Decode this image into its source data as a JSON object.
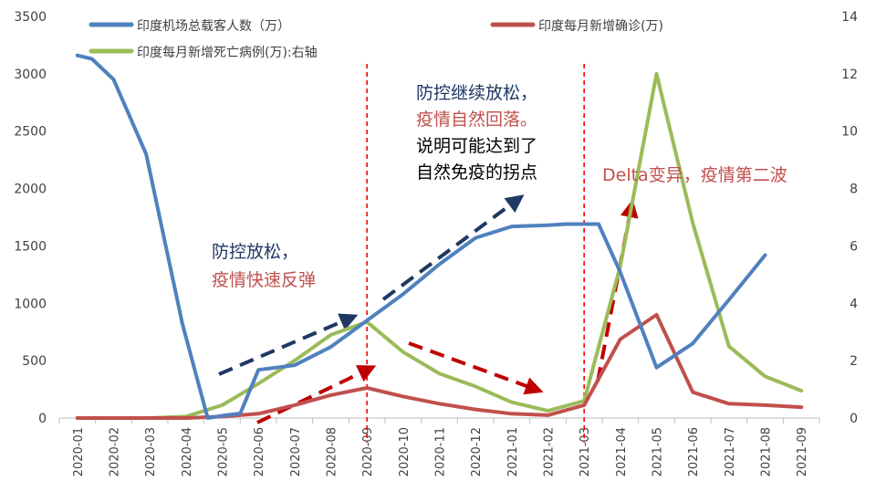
{
  "chart_data": {
    "type": "line",
    "categories": [
      "2020-01",
      "2020-02",
      "2020-03",
      "2020-04",
      "2020-05",
      "2020-06",
      "2020-07",
      "2020-08",
      "2020-09",
      "2020-10",
      "2020-11",
      "2020-12",
      "2021-01",
      "2021-02",
      "2021-03",
      "2021-04",
      "2021-05",
      "2021-06",
      "2021-07",
      "2021-08",
      "2021-09"
    ],
    "y_left": {
      "ylim": [
        0,
        3500
      ],
      "ticks": [
        0,
        500,
        1000,
        1500,
        2000,
        2500,
        3000,
        3500
      ]
    },
    "y_right": {
      "ylim": [
        0,
        14
      ],
      "ticks": [
        0,
        2,
        4,
        6,
        8,
        10,
        12,
        14
      ]
    },
    "series": [
      {
        "name": "印度机场总载客人数（万）",
        "axis": "left",
        "color": "#4f81bd",
        "x": [
          0,
          0.4,
          1,
          1.9,
          2.9,
          3.6,
          4,
          4.5,
          5,
          6,
          7,
          8,
          9,
          10,
          11,
          12,
          13,
          13.5,
          14,
          14.4,
          15,
          16,
          17,
          18,
          19
        ],
        "values": [
          3160,
          3130,
          2950,
          2300,
          820,
          0,
          20,
          40,
          420,
          460,
          620,
          850,
          1080,
          1340,
          1570,
          1670,
          1680,
          1690,
          1690,
          1690,
          1270,
          440,
          650,
          1030,
          1420
        ]
      },
      {
        "name": "印度每月新增确诊(万)",
        "axis": "right",
        "color": "#c0504d",
        "x": [
          0,
          1,
          2,
          3,
          4,
          5,
          6,
          7,
          8,
          9,
          10,
          11,
          12,
          13,
          14,
          15,
          16,
          17,
          18,
          19,
          20
        ],
        "values": [
          0,
          0,
          0,
          0,
          0.05,
          0.15,
          0.45,
          0.8,
          1.05,
          0.75,
          0.5,
          0.3,
          0.15,
          0.1,
          0.45,
          2.75,
          3.6,
          0.9,
          0.5,
          0.45,
          0.38
        ]
      },
      {
        "name": "印度每月新增死亡病例(万):右轴",
        "axis": "right",
        "color": "#9bbb59",
        "x": [
          0,
          1,
          2,
          3,
          4,
          5,
          6,
          7,
          8,
          9,
          10,
          11,
          12,
          13,
          14,
          15,
          16,
          17,
          18,
          19,
          20
        ],
        "values": [
          0,
          0,
          0,
          0.05,
          0.45,
          1.2,
          2.0,
          2.9,
          3.35,
          2.3,
          1.55,
          1.1,
          0.55,
          0.25,
          0.6,
          5.3,
          12.0,
          6.8,
          2.5,
          1.45,
          0.95
        ]
      }
    ],
    "legend": {
      "placement": "top",
      "entries": [
        "印度机场总载客人数（万）",
        "印度每月新增确诊(万)",
        "印度每月新增死亡病例(万):右轴"
      ]
    },
    "markers": [
      {
        "category": "2020-09",
        "color": "#ff0000",
        "style": "dashed"
      },
      {
        "category": "2021-03",
        "color": "#ff0000",
        "style": "dashed"
      }
    ],
    "annotations": [
      {
        "id": "a1",
        "lines": [
          {
            "text": "防控放松，",
            "color": "#1f3864"
          },
          {
            "text": "疫情快速反弹",
            "color": "#c0504d"
          }
        ]
      },
      {
        "id": "a2",
        "lines": [
          {
            "text": "防控继续放松，",
            "color": "#1f3864"
          },
          {
            "text": "疫情自然回落。",
            "color": "#c0504d"
          },
          {
            "text": "说明可能达到了",
            "color": "#000000"
          },
          {
            "text": "自然免疫的拐点",
            "color": "#000000"
          }
        ]
      },
      {
        "id": "a3",
        "lines": [
          {
            "text": "Delta变异，疫情第二波",
            "color": "#c0504d"
          }
        ]
      }
    ],
    "grid": false
  }
}
